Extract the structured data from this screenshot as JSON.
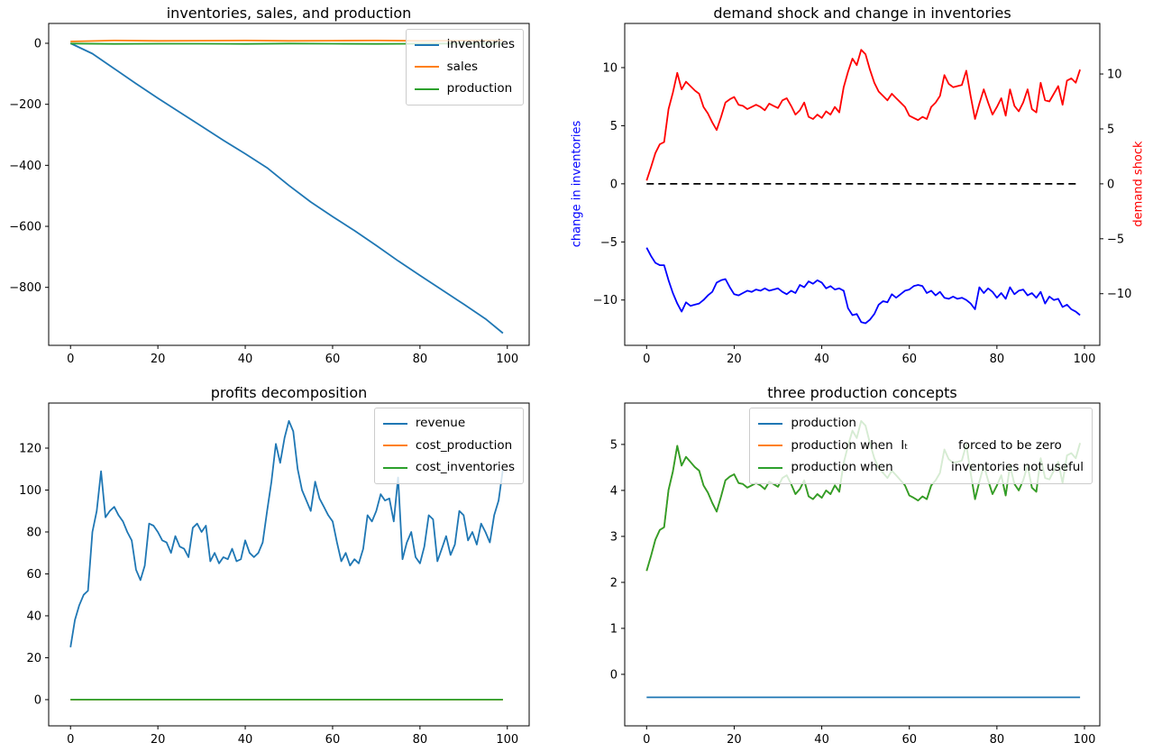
{
  "figure": {
    "background": "#ffffff",
    "tick_color": "#000000",
    "spine_color": "#000000"
  },
  "chart_data": [
    {
      "type": "line",
      "title": "inventories, sales, and production",
      "xlabel": "",
      "ylabel": "",
      "xlim": [
        -5,
        105
      ],
      "ylim": [
        -990,
        65
      ],
      "xticks": [
        0,
        20,
        40,
        60,
        80,
        100
      ],
      "yticks": [
        -800,
        -600,
        -400,
        -200,
        0
      ],
      "grid": false,
      "legend_position": "upper right",
      "series": [
        {
          "name": "inventories",
          "label": "inventories",
          "color": "#1f77b4",
          "x": [
            0,
            5,
            10,
            15,
            20,
            25,
            30,
            35,
            40,
            45,
            50,
            55,
            60,
            65,
            70,
            75,
            80,
            85,
            90,
            95,
            99
          ],
          "y": [
            0,
            -34,
            -83,
            -132,
            -180,
            -226,
            -272,
            -318,
            -362,
            -408,
            -466,
            -520,
            -568,
            -614,
            -663,
            -713,
            -761,
            -808,
            -855,
            -903,
            -950
          ]
        },
        {
          "name": "sales",
          "label": "sales",
          "color": "#ff7f0e",
          "x": [
            0,
            10,
            20,
            30,
            40,
            50,
            60,
            70,
            80,
            90,
            99
          ],
          "y": [
            6,
            9,
            8,
            8.5,
            9,
            8,
            8.5,
            9,
            8,
            8.5,
            9
          ]
        },
        {
          "name": "production",
          "label": "production",
          "color": "#2ca02c",
          "x": [
            0,
            10,
            20,
            30,
            40,
            50,
            60,
            70,
            80,
            90,
            99
          ],
          "y": [
            -1,
            -2,
            -1.5,
            -1.5,
            -2,
            -1,
            -1.5,
            -2,
            -1.5,
            -1,
            -1.5
          ]
        }
      ]
    },
    {
      "type": "line",
      "title": "demand shock and change in inventories",
      "ylabel_left": {
        "text": "change in inventories",
        "color": "#0000ff"
      },
      "ylabel_right": {
        "text": "demand shock",
        "color": "#ff0000"
      },
      "xlim": [
        -5,
        103.5
      ],
      "ylim": [
        -13.9,
        13.8
      ],
      "yticks": [
        -10,
        -5,
        0,
        5,
        10
      ],
      "ylim_right": [
        -14.7,
        14.6
      ],
      "yticks_right": [
        -10,
        -5,
        0,
        5,
        10
      ],
      "xticks": [
        0,
        20,
        40,
        60,
        80,
        100
      ],
      "grid": false,
      "legend_position": null,
      "series": [
        {
          "name": "change in inventories",
          "color": "#0000ff",
          "axis": "left",
          "y": [
            -5.5,
            -6.2,
            -6.8,
            -7.0,
            -7.0,
            -8.3,
            -9.4,
            -10.3,
            -11.0,
            -10.2,
            -10.5,
            -10.4,
            -10.3,
            -10.0,
            -9.6,
            -9.3,
            -8.5,
            -8.3,
            -8.2,
            -8.9,
            -9.5,
            -9.6,
            -9.4,
            -9.2,
            -9.3,
            -9.1,
            -9.2,
            -9.0,
            -9.2,
            -9.1,
            -9.0,
            -9.3,
            -9.5,
            -9.2,
            -9.4,
            -8.7,
            -8.9,
            -8.4,
            -8.6,
            -8.3,
            -8.5,
            -9.0,
            -8.8,
            -9.1,
            -9.0,
            -9.2,
            -10.7,
            -11.3,
            -11.2,
            -11.9,
            -12.0,
            -11.7,
            -11.2,
            -10.4,
            -10.1,
            -10.2,
            -9.5,
            -9.8,
            -9.5,
            -9.2,
            -9.1,
            -8.8,
            -8.7,
            -8.8,
            -9.4,
            -9.2,
            -9.6,
            -9.3,
            -9.8,
            -9.9,
            -9.7,
            -9.9,
            -9.8,
            -10.0,
            -10.3,
            -10.8,
            -8.9,
            -9.4,
            -9.0,
            -9.3,
            -9.8,
            -9.4,
            -9.9,
            -8.9,
            -9.5,
            -9.2,
            -9.1,
            -9.6,
            -9.4,
            -9.8,
            -9.3,
            -10.3,
            -9.7,
            -10.0,
            -9.9,
            -10.6,
            -10.4,
            -10.8,
            -11.0,
            -11.3
          ]
        },
        {
          "name": "demand shock",
          "color": "#ff0000",
          "axis": "right",
          "y": [
            0.3,
            1.5,
            2.8,
            3.6,
            3.8,
            6.8,
            8.3,
            10.1,
            8.6,
            9.3,
            8.9,
            8.5,
            8.2,
            7.0,
            6.4,
            5.6,
            4.9,
            6.1,
            7.4,
            7.7,
            7.9,
            7.2,
            7.1,
            6.8,
            7.0,
            7.2,
            7.0,
            6.7,
            7.3,
            7.1,
            6.9,
            7.6,
            7.8,
            7.1,
            6.3,
            6.7,
            7.4,
            6.1,
            5.9,
            6.3,
            6.0,
            6.6,
            6.3,
            7.0,
            6.5,
            8.8,
            10.2,
            11.4,
            10.8,
            12.2,
            11.8,
            10.4,
            9.2,
            8.4,
            8.0,
            7.6,
            8.2,
            7.8,
            7.4,
            7.0,
            6.2,
            6.0,
            5.8,
            6.1,
            5.9,
            7.0,
            7.4,
            8.0,
            9.9,
            9.1,
            8.8,
            8.9,
            9.0,
            10.3,
            8.0,
            5.9,
            7.3,
            8.6,
            7.4,
            6.3,
            7.0,
            7.8,
            6.2,
            8.6,
            7.1,
            6.6,
            7.4,
            8.6,
            6.8,
            6.5,
            9.2,
            7.6,
            7.5,
            8.2,
            8.9,
            7.2,
            9.4,
            9.6,
            9.2,
            10.4
          ]
        },
        {
          "name": "zero reference",
          "color": "#000000",
          "axis": "right",
          "dash": true,
          "x": [
            0,
            99
          ],
          "y": [
            0,
            0
          ]
        }
      ]
    },
    {
      "type": "line",
      "title": "profits decomposition",
      "xlim": [
        -5,
        105
      ],
      "ylim": [
        -12.5,
        141.5
      ],
      "xticks": [
        0,
        20,
        40,
        60,
        80,
        100
      ],
      "yticks": [
        0,
        20,
        40,
        60,
        80,
        100,
        120
      ],
      "grid": false,
      "legend_position": "upper right",
      "series": [
        {
          "name": "revenue",
          "label": "revenue",
          "color": "#1f77b4",
          "y": [
            25,
            38,
            45,
            50,
            52,
            80,
            90,
            109,
            87,
            90,
            92,
            88,
            85,
            80,
            76,
            62,
            57,
            64,
            84,
            83,
            80,
            76,
            75,
            70,
            78,
            73,
            72,
            68,
            82,
            84,
            80,
            83,
            66,
            70,
            65,
            68,
            67,
            72,
            66,
            67,
            76,
            70,
            68,
            70,
            75,
            90,
            104,
            122,
            113,
            125,
            133,
            128,
            110,
            100,
            95,
            90,
            104,
            96,
            92,
            88,
            85,
            75,
            66,
            70,
            64,
            67,
            65,
            72,
            88,
            85,
            90,
            98,
            95,
            96,
            85,
            106,
            67,
            75,
            80,
            68,
            65,
            73,
            88,
            86,
            66,
            72,
            78,
            69,
            74,
            90,
            88,
            76,
            80,
            74,
            84,
            80,
            75,
            88,
            95,
            110
          ]
        },
        {
          "name": "cost_production",
          "label": "cost_production",
          "color": "#ff7f0e",
          "x": [
            0,
            99
          ],
          "y": [
            0,
            0
          ]
        },
        {
          "name": "cost_inventories",
          "label": "cost_inventories",
          "color": "#2ca02c",
          "x": [
            0,
            99
          ],
          "y": [
            0,
            0
          ]
        }
      ]
    },
    {
      "type": "line",
      "title": "three production concepts",
      "xlim": [
        -5,
        103.5
      ],
      "ylim": [
        -1.12,
        5.9
      ],
      "xticks": [
        0,
        20,
        40,
        60,
        80,
        100
      ],
      "yticks": [
        0,
        1,
        2,
        3,
        4,
        5
      ],
      "grid": false,
      "legend_position": "upper center",
      "series": [
        {
          "name": "production",
          "label": "production",
          "color": "#1f77b4",
          "x": [
            0,
            99
          ],
          "y": [
            -0.5,
            -0.5
          ]
        },
        {
          "name": "production when I_t forced to be zero",
          "label": "production when  Iₜ             forced to be zero",
          "color": "#ff7f0e",
          "y": [
            2.25,
            2.57,
            2.93,
            3.14,
            3.2,
            4.01,
            4.41,
            4.97,
            4.54,
            4.73,
            4.62,
            4.51,
            4.43,
            4.11,
            3.95,
            3.73,
            3.54,
            3.87,
            4.22,
            4.3,
            4.35,
            4.16,
            4.14,
            4.06,
            4.11,
            4.16,
            4.11,
            4.03,
            4.19,
            4.14,
            4.08,
            4.27,
            4.33,
            4.14,
            3.92,
            4.03,
            4.22,
            3.87,
            3.81,
            3.92,
            3.84,
            4.0,
            3.92,
            4.11,
            3.97,
            4.6,
            4.97,
            5.3,
            5.14,
            5.51,
            5.41,
            5.03,
            4.7,
            4.49,
            4.38,
            4.27,
            4.43,
            4.33,
            4.22,
            4.11,
            3.89,
            3.84,
            3.78,
            3.87,
            3.81,
            4.11,
            4.22,
            4.38,
            4.89,
            4.68,
            4.6,
            4.62,
            4.65,
            5.0,
            4.38,
            3.81,
            4.19,
            4.54,
            4.22,
            3.92,
            4.11,
            4.33,
            3.89,
            4.54,
            4.14,
            4.0,
            4.22,
            4.54,
            4.06,
            3.97,
            4.7,
            4.27,
            4.24,
            4.43,
            4.62,
            4.16,
            4.76,
            4.81,
            4.7,
            5.03
          ]
        },
        {
          "name": "production when inventories not useful",
          "label": "production when               inventories not useful",
          "color": "#2ca02c",
          "y": [
            2.25,
            2.57,
            2.93,
            3.14,
            3.2,
            4.01,
            4.41,
            4.97,
            4.54,
            4.73,
            4.62,
            4.51,
            4.43,
            4.11,
            3.95,
            3.73,
            3.54,
            3.87,
            4.22,
            4.3,
            4.35,
            4.16,
            4.14,
            4.06,
            4.11,
            4.16,
            4.11,
            4.03,
            4.19,
            4.14,
            4.08,
            4.27,
            4.33,
            4.14,
            3.92,
            4.03,
            4.22,
            3.87,
            3.81,
            3.92,
            3.84,
            4.0,
            3.92,
            4.11,
            3.97,
            4.6,
            4.97,
            5.3,
            5.14,
            5.51,
            5.41,
            5.03,
            4.7,
            4.49,
            4.38,
            4.27,
            4.43,
            4.33,
            4.22,
            4.11,
            3.89,
            3.84,
            3.78,
            3.87,
            3.81,
            4.11,
            4.22,
            4.38,
            4.89,
            4.68,
            4.6,
            4.62,
            4.65,
            5.0,
            4.38,
            3.81,
            4.19,
            4.54,
            4.22,
            3.92,
            4.11,
            4.33,
            3.89,
            4.54,
            4.14,
            4.0,
            4.22,
            4.54,
            4.06,
            3.97,
            4.7,
            4.27,
            4.24,
            4.43,
            4.62,
            4.16,
            4.76,
            4.81,
            4.7,
            5.03
          ]
        }
      ]
    }
  ]
}
